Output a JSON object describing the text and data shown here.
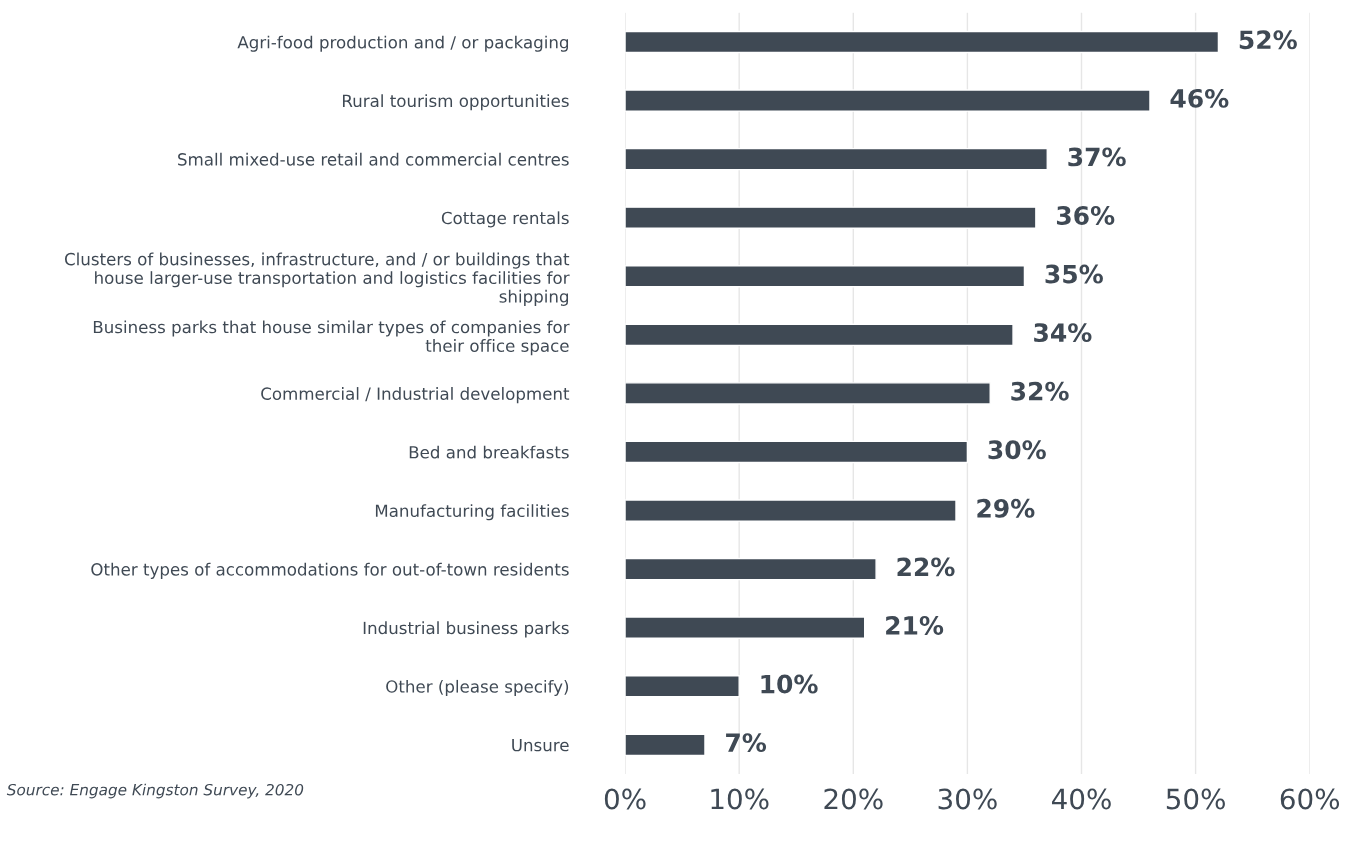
{
  "chart_data": {
    "type": "bar",
    "orientation": "horizontal",
    "categories": [
      "Agri-food production and / or packaging",
      "Rural tourism opportunities",
      "Small mixed-use retail and commercial centres",
      "Cottage rentals",
      "Clusters of businesses, infrastructure, and / or buildings that\nhouse larger-use transportation and logistics facilities for\nshipping",
      "Business parks that house similar types of companies for\ntheir office space",
      "Commercial / Industrial development",
      "Bed and breakfasts",
      "Manufacturing facilities",
      "Other types of accommodations for out-of-town residents",
      "Industrial business parks",
      "Other (please specify)",
      "Unsure"
    ],
    "values": [
      52,
      46,
      37,
      36,
      35,
      34,
      32,
      30,
      29,
      22,
      21,
      10,
      7
    ],
    "value_labels": [
      "52%",
      "46%",
      "37%",
      "36%",
      "35%",
      "34%",
      "32%",
      "30%",
      "29%",
      "22%",
      "21%",
      "10%",
      "7%"
    ],
    "color": "#3f4954",
    "xlim": [
      0,
      60
    ],
    "xticks": [
      {
        "value": 0,
        "label": "0%"
      },
      {
        "value": 10,
        "label": "10%"
      },
      {
        "value": 20,
        "label": "20%"
      },
      {
        "value": 30,
        "label": "30%"
      },
      {
        "value": 40,
        "label": "40%"
      },
      {
        "value": 50,
        "label": "50%"
      },
      {
        "value": 60,
        "label": "60%"
      }
    ],
    "grid": "x",
    "legend": false,
    "annotations": [
      "Source: Engage Kingston Survey, 2020"
    ]
  }
}
